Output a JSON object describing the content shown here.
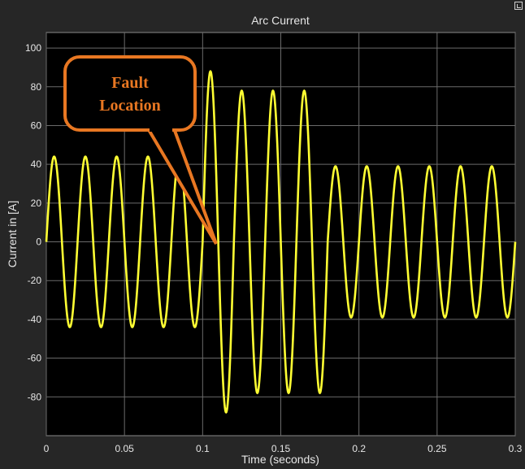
{
  "chart_data": {
    "type": "line",
    "title": "Arc Current",
    "xlabel": "Time (seconds)",
    "ylabel": "Current in [A]",
    "xlim": [
      0,
      0.3
    ],
    "ylim": [
      -100,
      108
    ],
    "grid": true,
    "xticks": [
      0,
      0.05,
      0.1,
      0.15,
      0.2,
      0.25,
      0.3
    ],
    "xtick_labels": [
      "0",
      "0.05",
      "0.1",
      "0.15",
      "0.2",
      "0.25",
      "0.3"
    ],
    "yticks": [
      100,
      80,
      60,
      40,
      20,
      0,
      -20,
      -40,
      -60,
      -80
    ],
    "ytick_labels": [
      "100",
      "80",
      "60",
      "40",
      "20",
      "0",
      "-20",
      "-40",
      "-60",
      "-80"
    ],
    "series": [
      {
        "color": "#ffff33",
        "segments": [
          {
            "t_start": 0,
            "t_end": 0.1,
            "frequency_hz": 50,
            "amplitude": 44
          },
          {
            "t_start": 0.1,
            "t_end": 0.18,
            "frequency_hz": 50,
            "amplitude_peaks": [
              88,
              78,
              78,
              78
            ]
          },
          {
            "t_start": 0.18,
            "t_end": 0.3,
            "frequency_hz": 50,
            "amplitude": 39
          }
        ]
      }
    ],
    "annotation": {
      "text_line1": "Fault",
      "text_line2": "Location",
      "points_to": {
        "x": 0.11,
        "y": 0
      }
    }
  },
  "colors": {
    "figure_background": "#262626",
    "plot_background": "#000000",
    "grid": "#6b6b6b",
    "text": "#e6e6e6",
    "trace": "#ffff33",
    "callout": "#e87722"
  }
}
